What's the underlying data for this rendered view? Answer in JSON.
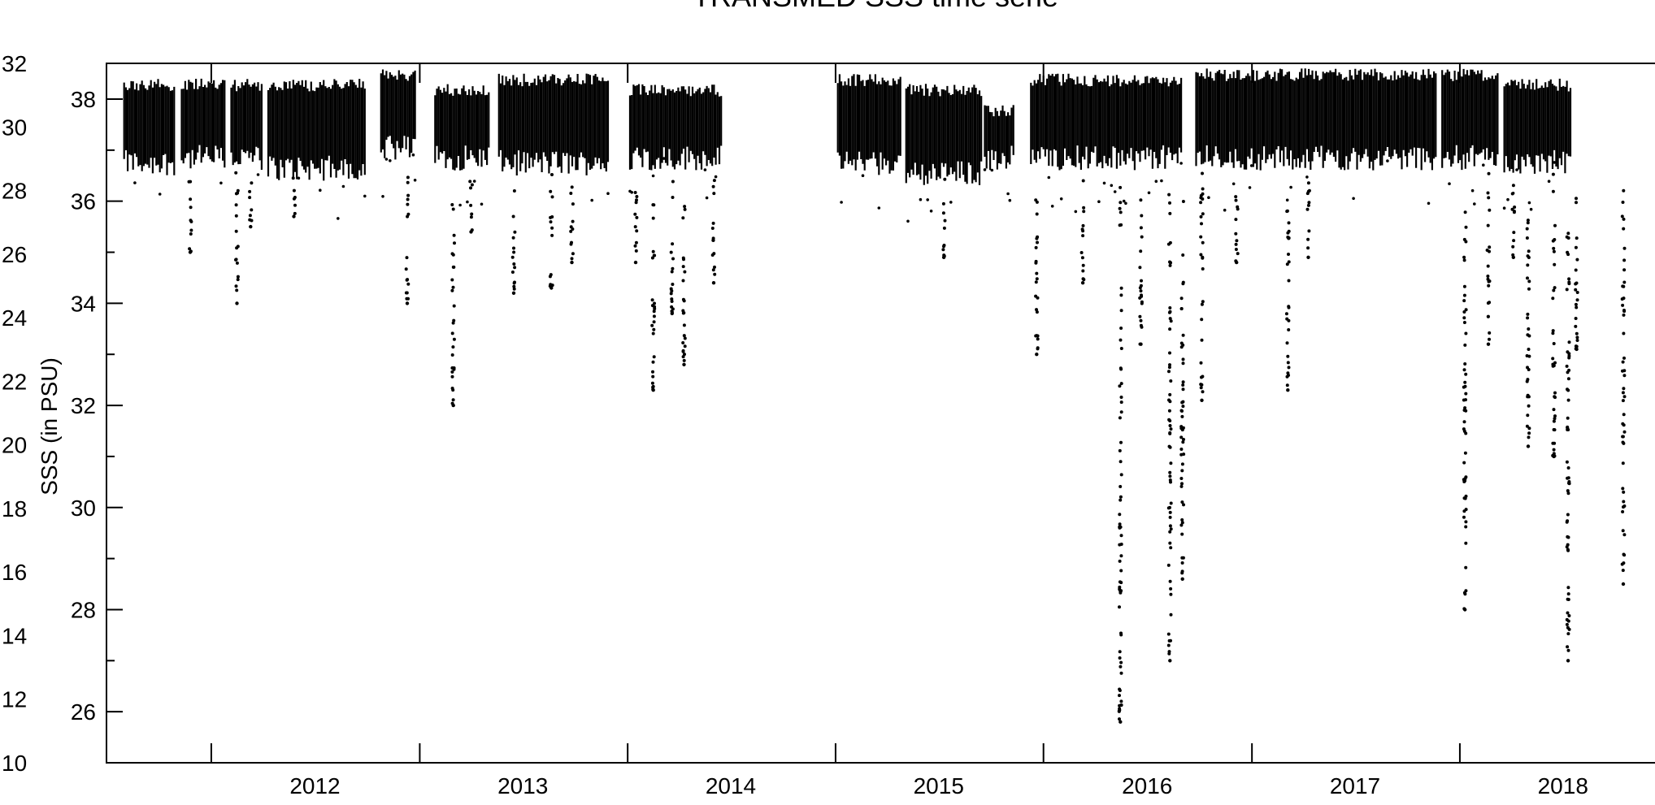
{
  "chart_data": {
    "type": "scatter",
    "title": "TRANSMED SSS time serie",
    "xlabel": "",
    "ylabel": "SSS (in PSU)",
    "x_ticks": [
      "2012",
      "2013",
      "2014",
      "2015",
      "2016",
      "2017",
      "2018"
    ],
    "x_range": [
      "2011-07-01",
      "2018-12-31"
    ],
    "y_right_inner_ticks": [
      26,
      28,
      30,
      32,
      34,
      36,
      38
    ],
    "y_right_inner_range": [
      25,
      38.7
    ],
    "y_left_outer_ticks": [
      10,
      12,
      14,
      16,
      18,
      20,
      22,
      24,
      26,
      28,
      30,
      32
    ],
    "y_left_outer_range": [
      10,
      32
    ],
    "grid": false,
    "legend": "none",
    "marker_color": "#000000",
    "series": [
      {
        "segments": [
          {
            "start": "2011-08-01",
            "end": "2011-10-28",
            "band": [
              36.5,
              38.4
            ]
          },
          {
            "start": "2011-11-10",
            "end": "2012-01-25",
            "band": [
              36.6,
              38.4
            ]
          },
          {
            "start": "2012-02-05",
            "end": "2012-04-01",
            "band": [
              36.6,
              38.4
            ]
          },
          {
            "start": "2012-04-10",
            "end": "2012-09-28",
            "band": [
              36.4,
              38.4
            ]
          },
          {
            "start": "2012-10-25",
            "end": "2012-12-25",
            "band": [
              36.8,
              38.6
            ]
          },
          {
            "start": "2013-01-28",
            "end": "2013-05-05",
            "band": [
              36.6,
              38.3
            ]
          },
          {
            "start": "2013-05-20",
            "end": "2013-11-30",
            "band": [
              36.5,
              38.5
            ]
          },
          {
            "start": "2014-01-05",
            "end": "2014-06-15",
            "band": [
              36.6,
              38.3
            ]
          },
          {
            "start": "2015-01-05",
            "end": "2015-04-25",
            "band": [
              36.5,
              38.5
            ]
          },
          {
            "start": "2015-05-05",
            "end": "2015-09-15",
            "band": [
              36.3,
              38.3
            ]
          },
          {
            "start": "2015-09-20",
            "end": "2015-11-10",
            "band": [
              36.6,
              37.9
            ]
          },
          {
            "start": "2015-12-10",
            "end": "2016-09-01",
            "band": [
              36.6,
              38.5
            ]
          },
          {
            "start": "2016-09-25",
            "end": "2017-11-20",
            "band": [
              36.6,
              38.6
            ]
          },
          {
            "start": "2017-12-01",
            "end": "2018-03-10",
            "band": [
              36.6,
              38.6
            ]
          },
          {
            "start": "2018-03-20",
            "end": "2018-07-15",
            "band": [
              36.5,
              38.4
            ]
          }
        ],
        "spikes": [
          {
            "x": "2011-11-25",
            "min": 35.0
          },
          {
            "x": "2012-02-15",
            "min": 34.0
          },
          {
            "x": "2012-03-10",
            "min": 35.5
          },
          {
            "x": "2012-05-25",
            "min": 35.7
          },
          {
            "x": "2012-12-10",
            "min": 34.0
          },
          {
            "x": "2013-03-01",
            "min": 32.0
          },
          {
            "x": "2013-04-01",
            "min": 35.4
          },
          {
            "x": "2013-06-15",
            "min": 34.2
          },
          {
            "x": "2013-08-20",
            "min": 34.3
          },
          {
            "x": "2013-09-25",
            "min": 34.8
          },
          {
            "x": "2014-01-15",
            "min": 34.8
          },
          {
            "x": "2014-02-15",
            "min": 32.3
          },
          {
            "x": "2014-03-20",
            "min": 33.8
          },
          {
            "x": "2014-04-10",
            "min": 32.8
          },
          {
            "x": "2014-06-01",
            "min": 34.4
          },
          {
            "x": "2015-07-10",
            "min": 34.9
          },
          {
            "x": "2015-12-20",
            "min": 33.0
          },
          {
            "x": "2016-03-10",
            "min": 34.4
          },
          {
            "x": "2016-05-15",
            "min": 25.8
          },
          {
            "x": "2016-06-20",
            "min": 33.2
          },
          {
            "x": "2016-08-10",
            "min": 27.0
          },
          {
            "x": "2016-09-01",
            "min": 28.6
          },
          {
            "x": "2016-10-05",
            "min": 32.1
          },
          {
            "x": "2016-12-05",
            "min": 34.8
          },
          {
            "x": "2017-03-05",
            "min": 32.3
          },
          {
            "x": "2017-04-10",
            "min": 34.9
          },
          {
            "x": "2018-01-10",
            "min": 28.0
          },
          {
            "x": "2018-02-20",
            "min": 33.2
          },
          {
            "x": "2018-04-05",
            "min": 34.9
          },
          {
            "x": "2018-05-01",
            "min": 31.2
          },
          {
            "x": "2018-06-15",
            "min": 31.0
          },
          {
            "x": "2018-07-10",
            "min": 27.0
          },
          {
            "x": "2018-07-25",
            "min": 33.1
          },
          {
            "x": "2018-10-15",
            "min": 28.5
          }
        ]
      }
    ]
  }
}
